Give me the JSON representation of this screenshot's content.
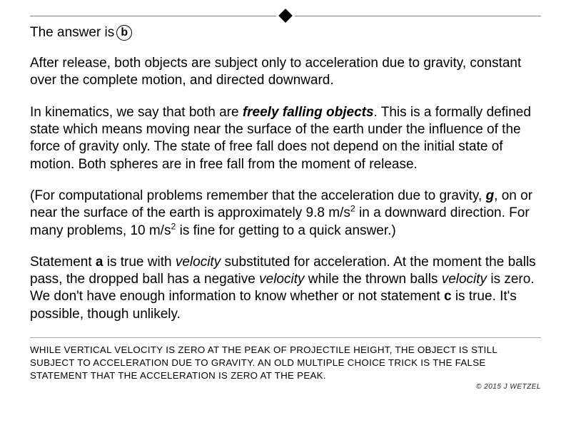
{
  "answer_prefix": "The answer is",
  "answer_letter": "b",
  "paragraphs": {
    "p1": "After release, both objects are subject only to acceleration due to gravity, constant over the complete motion, and directed downward.",
    "p2_a": "In kinematics, we say that both are ",
    "p2_b": "freely falling objects",
    "p2_c": ".  This is a formally defined state which means moving near the surface of the earth under the influence of the force of gravity only.  The state of free fall does not depend on the initial state of motion.  Both spheres are in free fall from the moment of release.",
    "p3_a": "(For computational problems remember that the acceleration due to gravity, ",
    "p3_g": "g",
    "p3_b": ", on or near the surface of the earth is approximately 9.8 m/s",
    "p3_c": " in a downward direction.  For many problems, 10 m/s",
    "p3_d": "  is fine for getting to a quick answer.)",
    "p4_a": "Statement ",
    "p4_a_bold": "a",
    "p4_b": " is true with ",
    "p4_vel1": "velocity",
    "p4_c": " substituted for acceleration.  At the moment the balls pass, the dropped ball has a negative ",
    "p4_vel2": "velocity",
    "p4_d": " while the thrown balls ",
    "p4_vel3": "velocity",
    "p4_e": " is zero.  We don't have enough information to know whether or not statement ",
    "p4_c_bold": "c",
    "p4_f": " is true.  It's possible, though unlikely.",
    "sup2": "2"
  },
  "footnote": "While vertical velocity is zero at the peak of projectile height, the object is still subject to acceleration due to gravity.  An old multiple choice trick is the false statement that the acceleration is zero at the peak.",
  "copyright": "© 2015 J WETZEL"
}
